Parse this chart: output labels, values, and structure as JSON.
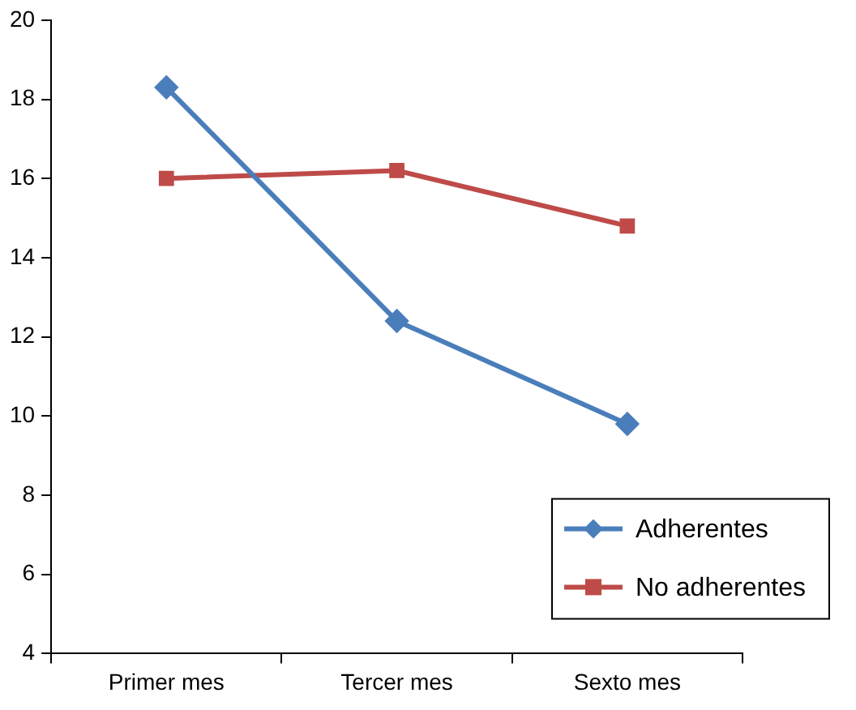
{
  "chart_data": {
    "type": "line",
    "categories": [
      "Primer mes",
      "Tercer mes",
      "Sexto mes"
    ],
    "series": [
      {
        "name": "Adherentes",
        "color": "#4a7ebb",
        "values": [
          18.3,
          12.4,
          9.8
        ],
        "marker": "diamond"
      },
      {
        "name": "No adherentes",
        "color": "#be4b48",
        "values": [
          16.0,
          16.2,
          14.8
        ],
        "marker": "square"
      }
    ],
    "ylim": [
      4,
      20
    ],
    "yticks": [
      4,
      6,
      8,
      10,
      12,
      14,
      16,
      18,
      20
    ],
    "grid": false,
    "legend": "bottom right"
  }
}
